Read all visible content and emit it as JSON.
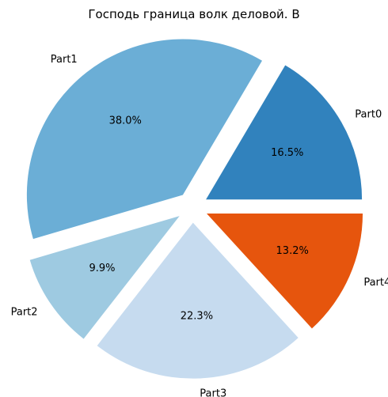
{
  "chart_data": {
    "type": "pie",
    "title": "Господь граница волк деловой. В",
    "slices": [
      {
        "label": "Part0",
        "value": 16.5,
        "display": "16.5%",
        "color": "#3182bd",
        "exploded": true
      },
      {
        "label": "Part1",
        "value": 38.0,
        "display": "38.0%",
        "color": "#6baed6",
        "exploded": true
      },
      {
        "label": "Part2",
        "value": 9.9,
        "display": "9.9%",
        "color": "#9ecae1",
        "exploded": true
      },
      {
        "label": "Part3",
        "value": 22.3,
        "display": "22.3%",
        "color": "#c6dbef",
        "exploded": true
      },
      {
        "label": "Part4",
        "value": 13.2,
        "display": "13.2%",
        "color": "#e6550d",
        "exploded": true
      }
    ],
    "start_angle": 0,
    "direction": "counterclockwise",
    "legend": "none"
  }
}
